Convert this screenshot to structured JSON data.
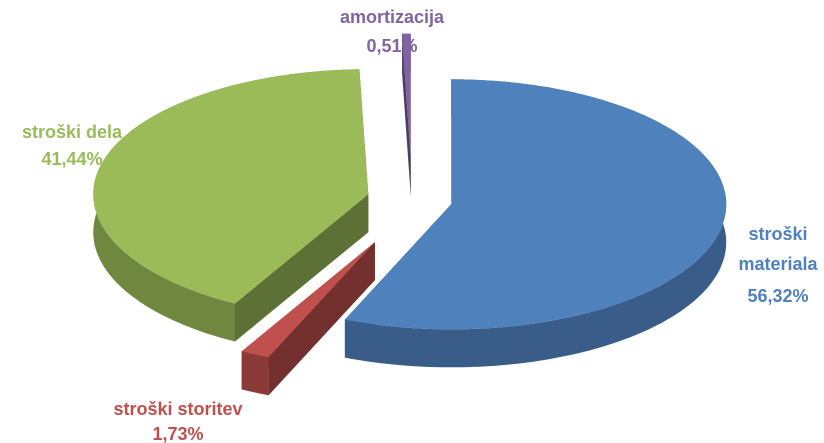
{
  "chart_data": {
    "type": "pie",
    "categories": [
      "stroški materiala",
      "stroški storitev",
      "stroški dela",
      "amortizacija"
    ],
    "values": [
      56.32,
      1.73,
      41.44,
      0.51
    ],
    "value_labels": [
      "56,32%",
      "1,73%",
      "41,44%",
      "0,51%"
    ],
    "colors": [
      "#4f81bd",
      "#c0504d",
      "#9bbb59",
      "#8064a2"
    ]
  }
}
